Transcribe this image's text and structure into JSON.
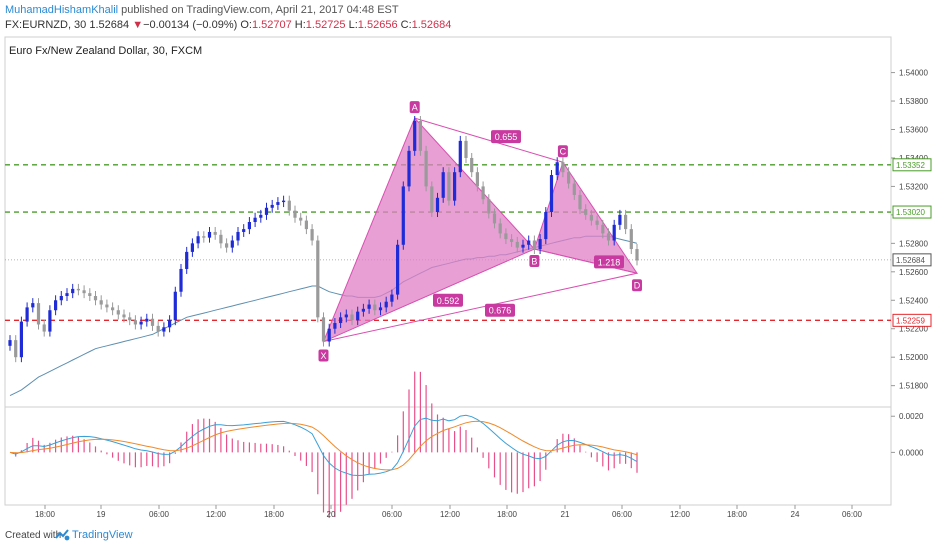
{
  "header": {
    "author": "MuhamadHishamKhalil",
    "published_text": "published on TradingView.com, April 21, 2017 04:48 EST",
    "symbol": "FX:EURNZD, 30",
    "last_price": "1.52684",
    "change_arrow": "▼",
    "change": "−0.00134 (−0.09%)",
    "o_label": "O:",
    "o_value": "1.52707",
    "h_label": "H:",
    "h_value": "1.52725",
    "l_label": "L:",
    "l_value": "1.52656",
    "c_label": "C:",
    "c_value": "1.52684"
  },
  "footer": {
    "created_with": "Created with",
    "brand": "TradingView"
  },
  "colors": {
    "bull": "#1e2bd6",
    "bear": "#9a9a9a",
    "pattern_fill": "#e07fc6",
    "pattern_line": "#d84fb1",
    "green_level": "#4a9c2a",
    "red_level": "#e5262c",
    "ma": "#5d8fb0",
    "macd": "#3aa0d8",
    "signal": "#f08a2a",
    "hist": "#e8508a"
  },
  "chart_data": {
    "type": "candlestick",
    "title": "Euro Fx/New Zealand Dollar, 30, FXCM",
    "price_axis": {
      "ylim": [
        1.5165,
        1.5425
      ],
      "ticks": [
        "1.54000",
        "1.53800",
        "1.53600",
        "1.53400",
        "1.53200",
        "1.53000",
        "1.52800",
        "1.52600",
        "1.52400",
        "1.52200",
        "1.52000",
        "1.51800"
      ]
    },
    "time_axis": {
      "ticks": [
        "18:00",
        "19",
        "06:00",
        "12:00",
        "18:00",
        "20",
        "06:00",
        "12:00",
        "18:00",
        "21",
        "06:00",
        "12:00",
        "18:00",
        "24",
        "06:00"
      ]
    },
    "price_labels": [
      {
        "value": 1.53352,
        "text": "1.53352",
        "color": "#4a9c2a"
      },
      {
        "value": 1.5302,
        "text": "1.53020",
        "color": "#4a9c2a"
      },
      {
        "value": 1.52684,
        "text": "1.52684",
        "color": "#555555"
      },
      {
        "value": 1.52259,
        "text": "1.52259",
        "color": "#e5262c"
      }
    ],
    "horizontal_levels": [
      {
        "value": 1.53352,
        "style": "dashed",
        "color": "green"
      },
      {
        "value": 1.5302,
        "style": "dashed",
        "color": "green"
      },
      {
        "value": 1.52259,
        "style": "dashed",
        "color": "red"
      },
      {
        "value": 1.52684,
        "style": "dotted",
        "color": "gray"
      }
    ],
    "pattern": {
      "type": "harmonic XABCD",
      "points": [
        {
          "name": "X",
          "bar": 55,
          "price": 1.5211
        },
        {
          "name": "A",
          "bar": 71,
          "price": 1.5368
        },
        {
          "name": "B",
          "bar": 92,
          "price": 1.5276
        },
        {
          "name": "C",
          "bar": 97,
          "price": 1.5337
        },
        {
          "name": "D",
          "bar": 110,
          "price": 1.5259
        }
      ],
      "ratios": [
        {
          "text": "0.592",
          "price": 1.524
        },
        {
          "text": "0.655",
          "price": 1.5355
        },
        {
          "text": "1.218",
          "price": 1.5267
        },
        {
          "text": "0.676",
          "price": 1.5233
        }
      ]
    },
    "moving_average": {
      "name": "MA",
      "values": [
        1.5173,
        1.5175,
        1.5177,
        1.518,
        1.5183,
        1.5186,
        1.5188,
        1.519,
        1.5192,
        1.5194,
        1.5196,
        1.5198,
        1.52,
        1.5202,
        1.5204,
        1.5206,
        1.5207,
        1.5208,
        1.5209,
        1.521,
        1.5211,
        1.5212,
        1.5213,
        1.5214,
        1.5215,
        1.5216,
        1.5218,
        1.522,
        1.5222,
        1.5224,
        1.5226,
        1.5228,
        1.5229,
        1.523,
        1.5231,
        1.5232,
        1.5233,
        1.5234,
        1.5235,
        1.5236,
        1.5237,
        1.5238,
        1.5239,
        1.524,
        1.5241,
        1.5242,
        1.5243,
        1.5244,
        1.5245,
        1.5246,
        1.5247,
        1.5248,
        1.5249,
        1.525,
        1.525,
        1.5248,
        1.5246,
        1.5245,
        1.5244,
        1.5243,
        1.5243,
        1.5242,
        1.5242,
        1.5242,
        1.5242,
        1.5243,
        1.5245,
        1.5247,
        1.525,
        1.5253,
        1.5255,
        1.5257,
        1.5259,
        1.5261,
        1.5263,
        1.5264,
        1.5265,
        1.5266,
        1.5267,
        1.5268,
        1.5269,
        1.5269,
        1.527,
        1.527,
        1.5271,
        1.5271,
        1.5272,
        1.5272,
        1.5273,
        1.5274,
        1.5275,
        1.5276,
        1.5277,
        1.5278,
        1.5279,
        1.528,
        1.5281,
        1.5282,
        1.5283,
        1.5284,
        1.5284,
        1.5285,
        1.5285,
        1.5285,
        1.5285,
        1.5285,
        1.5284,
        1.5283,
        1.5282,
        1.5281,
        1.528
      ]
    },
    "candle_close": [
      1.5212,
      1.52,
      1.5225,
      1.5235,
      1.5238,
      1.5223,
      1.5218,
      1.5233,
      1.524,
      1.5243,
      1.5245,
      1.5248,
      1.5247,
      1.5245,
      1.5243,
      1.524,
      1.5237,
      1.5235,
      1.5233,
      1.523,
      1.5228,
      1.5226,
      1.5223,
      1.5225,
      1.5227,
      1.5222,
      1.5218,
      1.5221,
      1.5226,
      1.5246,
      1.5262,
      1.5274,
      1.528,
      1.5285,
      1.5284,
      1.5288,
      1.5286,
      1.528,
      1.5277,
      1.5282,
      1.5288,
      1.529,
      1.5295,
      1.5298,
      1.53,
      1.5305,
      1.5307,
      1.5309,
      1.531,
      1.5303,
      1.5298,
      1.5296,
      1.529,
      1.5282,
      1.5228,
      1.5211,
      1.522,
      1.5224,
      1.5228,
      1.523,
      1.5226,
      1.5232,
      1.5234,
      1.5237,
      1.5233,
      1.5235,
      1.5239,
      1.5244,
      1.5279,
      1.532,
      1.5345,
      1.5366,
      1.5345,
      1.532,
      1.5302,
      1.5312,
      1.533,
      1.531,
      1.533,
      1.5352,
      1.534,
      1.533,
      1.532,
      1.5311,
      1.5301,
      1.5294,
      1.5287,
      1.5283,
      1.5281,
      1.5277,
      1.5279,
      1.5282,
      1.5276,
      1.5283,
      1.5302,
      1.5328,
      1.5337,
      1.533,
      1.5322,
      1.5314,
      1.5304,
      1.53,
      1.5296,
      1.5293,
      1.5287,
      1.5282,
      1.5293,
      1.53,
      1.529,
      1.5276,
      1.5268
    ],
    "macd": {
      "yaxis_ticks": [
        "0.0020",
        "0.0000"
      ],
      "ylim": [
        -0.0028,
        0.0024
      ]
    }
  }
}
